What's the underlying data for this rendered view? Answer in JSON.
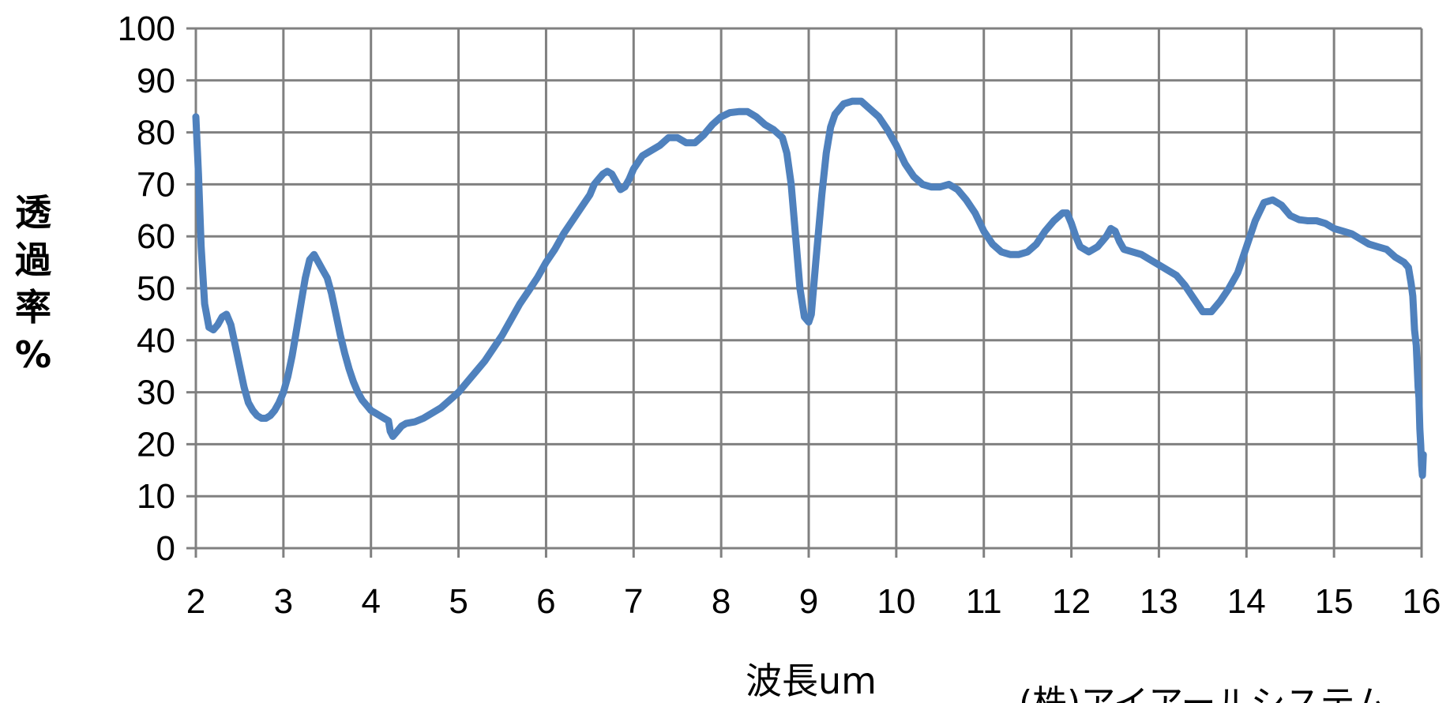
{
  "chart_data": {
    "type": "line",
    "xlabel": "波長um",
    "ylabel": "透過率%",
    "xlim": [
      2,
      16
    ],
    "ylim": [
      0,
      100
    ],
    "xticks": [
      2,
      3,
      4,
      5,
      6,
      7,
      8,
      9,
      10,
      11,
      12,
      13,
      14,
      15,
      16
    ],
    "yticks": [
      0,
      10,
      20,
      30,
      40,
      50,
      60,
      70,
      80,
      90,
      100
    ],
    "grid": true,
    "legend": "none",
    "line_color": "#4F81BD",
    "grid_color": "#808080",
    "annotation": "(株)アイアールシステム",
    "series": [
      {
        "points": [
          [
            2.0,
            83
          ],
          [
            2.03,
            72
          ],
          [
            2.06,
            58
          ],
          [
            2.1,
            47
          ],
          [
            2.15,
            42.5
          ],
          [
            2.2,
            42
          ],
          [
            2.25,
            43
          ],
          [
            2.3,
            44.5
          ],
          [
            2.35,
            45
          ],
          [
            2.4,
            43
          ],
          [
            2.45,
            39
          ],
          [
            2.5,
            35
          ],
          [
            2.55,
            31
          ],
          [
            2.6,
            28
          ],
          [
            2.65,
            26.5
          ],
          [
            2.7,
            25.5
          ],
          [
            2.75,
            25
          ],
          [
            2.8,
            25
          ],
          [
            2.85,
            25.5
          ],
          [
            2.9,
            26.5
          ],
          [
            2.95,
            28
          ],
          [
            3.0,
            30
          ],
          [
            3.05,
            33
          ],
          [
            3.1,
            37
          ],
          [
            3.15,
            42
          ],
          [
            3.2,
            47
          ],
          [
            3.25,
            52
          ],
          [
            3.3,
            55.5
          ],
          [
            3.35,
            56.5
          ],
          [
            3.4,
            55
          ],
          [
            3.45,
            53.5
          ],
          [
            3.5,
            52
          ],
          [
            3.55,
            49
          ],
          [
            3.6,
            45
          ],
          [
            3.65,
            41
          ],
          [
            3.7,
            37.5
          ],
          [
            3.75,
            34.5
          ],
          [
            3.8,
            32
          ],
          [
            3.85,
            30
          ],
          [
            3.9,
            28.5
          ],
          [
            3.95,
            27.5
          ],
          [
            4.0,
            26.5
          ],
          [
            4.05,
            26
          ],
          [
            4.1,
            25.5
          ],
          [
            4.15,
            25
          ],
          [
            4.2,
            24.5
          ],
          [
            4.22,
            22.5
          ],
          [
            4.25,
            21.5
          ],
          [
            4.3,
            22.5
          ],
          [
            4.35,
            23.5
          ],
          [
            4.4,
            24
          ],
          [
            4.5,
            24.3
          ],
          [
            4.6,
            25
          ],
          [
            4.7,
            26
          ],
          [
            4.8,
            27
          ],
          [
            4.9,
            28.5
          ],
          [
            5.0,
            30
          ],
          [
            5.1,
            32
          ],
          [
            5.2,
            34
          ],
          [
            5.3,
            36
          ],
          [
            5.4,
            38.5
          ],
          [
            5.5,
            41
          ],
          [
            5.6,
            44
          ],
          [
            5.7,
            47
          ],
          [
            5.8,
            49.5
          ],
          [
            5.9,
            52
          ],
          [
            6.0,
            55
          ],
          [
            6.1,
            57.5
          ],
          [
            6.2,
            60.5
          ],
          [
            6.3,
            63
          ],
          [
            6.4,
            65.5
          ],
          [
            6.5,
            68
          ],
          [
            6.55,
            70
          ],
          [
            6.6,
            71
          ],
          [
            6.65,
            72
          ],
          [
            6.7,
            72.5
          ],
          [
            6.75,
            72
          ],
          [
            6.8,
            70.5
          ],
          [
            6.85,
            69
          ],
          [
            6.9,
            69.5
          ],
          [
            6.95,
            71
          ],
          [
            7.0,
            73
          ],
          [
            7.1,
            75.5
          ],
          [
            7.2,
            76.5
          ],
          [
            7.3,
            77.5
          ],
          [
            7.4,
            79
          ],
          [
            7.5,
            79
          ],
          [
            7.6,
            78
          ],
          [
            7.7,
            78
          ],
          [
            7.8,
            79.5
          ],
          [
            7.9,
            81.5
          ],
          [
            8.0,
            83
          ],
          [
            8.1,
            83.8
          ],
          [
            8.2,
            84
          ],
          [
            8.3,
            84
          ],
          [
            8.4,
            83
          ],
          [
            8.5,
            81.5
          ],
          [
            8.6,
            80.5
          ],
          [
            8.7,
            79
          ],
          [
            8.75,
            76
          ],
          [
            8.8,
            70
          ],
          [
            8.85,
            60
          ],
          [
            8.9,
            50
          ],
          [
            8.95,
            44.5
          ],
          [
            9.0,
            43.5
          ],
          [
            9.03,
            45
          ],
          [
            9.08,
            55
          ],
          [
            9.15,
            68
          ],
          [
            9.2,
            76
          ],
          [
            9.25,
            81
          ],
          [
            9.3,
            83.5
          ],
          [
            9.4,
            85.5
          ],
          [
            9.5,
            86
          ],
          [
            9.6,
            86
          ],
          [
            9.7,
            84.5
          ],
          [
            9.8,
            83
          ],
          [
            9.9,
            80.5
          ],
          [
            10.0,
            77.5
          ],
          [
            10.1,
            74
          ],
          [
            10.2,
            71.5
          ],
          [
            10.3,
            70
          ],
          [
            10.4,
            69.5
          ],
          [
            10.5,
            69.5
          ],
          [
            10.6,
            70
          ],
          [
            10.7,
            69
          ],
          [
            10.8,
            67
          ],
          [
            10.9,
            64.5
          ],
          [
            11.0,
            61
          ],
          [
            11.1,
            58.5
          ],
          [
            11.2,
            57
          ],
          [
            11.3,
            56.5
          ],
          [
            11.4,
            56.5
          ],
          [
            11.5,
            57
          ],
          [
            11.6,
            58.5
          ],
          [
            11.7,
            61
          ],
          [
            11.8,
            63
          ],
          [
            11.9,
            64.5
          ],
          [
            11.95,
            64.5
          ],
          [
            12.0,
            62.5
          ],
          [
            12.05,
            60
          ],
          [
            12.1,
            58
          ],
          [
            12.2,
            57
          ],
          [
            12.3,
            58
          ],
          [
            12.4,
            60
          ],
          [
            12.45,
            61.5
          ],
          [
            12.5,
            61
          ],
          [
            12.55,
            59
          ],
          [
            12.6,
            57.5
          ],
          [
            12.7,
            57
          ],
          [
            12.8,
            56.5
          ],
          [
            12.9,
            55.5
          ],
          [
            13.0,
            54.5
          ],
          [
            13.1,
            53.5
          ],
          [
            13.2,
            52.5
          ],
          [
            13.3,
            50.5
          ],
          [
            13.4,
            48
          ],
          [
            13.5,
            45.5
          ],
          [
            13.6,
            45.5
          ],
          [
            13.7,
            47.5
          ],
          [
            13.8,
            50
          ],
          [
            13.9,
            53
          ],
          [
            14.0,
            58
          ],
          [
            14.1,
            63
          ],
          [
            14.2,
            66.5
          ],
          [
            14.3,
            67
          ],
          [
            14.4,
            66
          ],
          [
            14.5,
            64
          ],
          [
            14.6,
            63.2
          ],
          [
            14.7,
            63
          ],
          [
            14.8,
            63
          ],
          [
            14.9,
            62.5
          ],
          [
            15.0,
            61.5
          ],
          [
            15.1,
            61
          ],
          [
            15.2,
            60.5
          ],
          [
            15.3,
            59.5
          ],
          [
            15.4,
            58.5
          ],
          [
            15.5,
            58
          ],
          [
            15.6,
            57.5
          ],
          [
            15.7,
            56
          ],
          [
            15.8,
            55
          ],
          [
            15.85,
            54
          ],
          [
            15.88,
            51
          ],
          [
            15.9,
            48.5
          ],
          [
            15.92,
            42
          ],
          [
            15.94,
            39
          ],
          [
            15.96,
            31
          ],
          [
            15.97,
            29
          ],
          [
            15.98,
            23
          ],
          [
            15.99,
            20
          ],
          [
            16.0,
            16
          ],
          [
            16.01,
            14
          ],
          [
            16.02,
            18
          ]
        ]
      }
    ]
  }
}
